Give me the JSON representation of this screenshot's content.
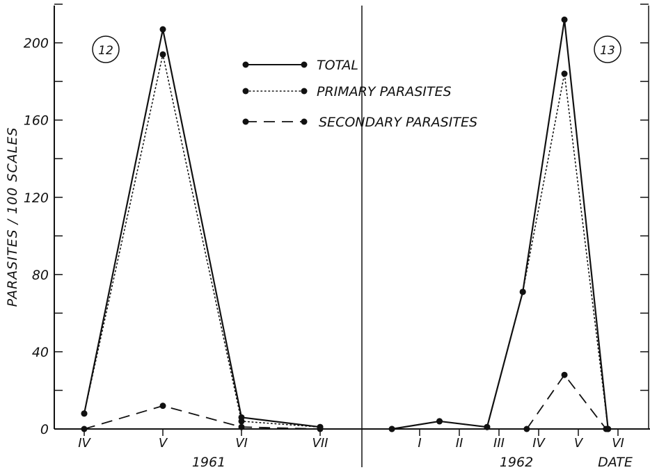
{
  "chart_data": [
    {
      "type": "line",
      "panel_label": "12",
      "year_label": "1961",
      "ylabel": "PARASITES / 100 SCALES",
      "ylim": [
        0,
        220
      ],
      "y_ticks": [
        "0",
        "40",
        "80",
        "120",
        "160",
        "200"
      ],
      "x_ticks": [
        {
          "label": "IV",
          "x": 1
        },
        {
          "label": "V",
          "x": 2
        },
        {
          "label": "VI",
          "x": 3
        },
        {
          "label": "VII",
          "x": 4
        }
      ],
      "legend": [
        {
          "name": "TOTAL",
          "style": "solid"
        },
        {
          "name": "PRIMARY PARASITES",
          "style": "dotted"
        },
        {
          "name": "SECONDARY PARASITES",
          "style": "dashed"
        }
      ],
      "series": [
        {
          "name": "TOTAL",
          "style": "solid",
          "x": [
            1,
            2,
            3,
            4
          ],
          "values": [
            8,
            207,
            6,
            1
          ]
        },
        {
          "name": "PRIMARY PARASITES",
          "style": "dotted",
          "x": [
            1,
            2,
            3,
            4
          ],
          "values": [
            8,
            194,
            4,
            1
          ]
        },
        {
          "name": "SECONDARY PARASITES",
          "style": "dashed",
          "x": [
            1,
            2,
            3,
            4
          ],
          "values": [
            0,
            12,
            1,
            0
          ]
        }
      ]
    },
    {
      "type": "line",
      "panel_label": "13",
      "year_label": "1962",
      "xlabel": "DATE",
      "ylim": [
        0,
        220
      ],
      "x_ticks": [
        {
          "label": "I",
          "x": 1
        },
        {
          "label": "II",
          "x": 2
        },
        {
          "label": "III",
          "x": 3
        },
        {
          "label": "IV",
          "x": 4
        },
        {
          "label": "V",
          "x": 5
        },
        {
          "label": "VI",
          "x": 6
        }
      ],
      "series": [
        {
          "name": "TOTAL",
          "style": "solid",
          "x": [
            0.3,
            1.5,
            2.7,
            3.6,
            4.65,
            5.75
          ],
          "values": [
            0,
            4,
            1,
            71,
            212,
            0
          ]
        },
        {
          "name": "PRIMARY PARASITES",
          "style": "dotted",
          "x": [
            0.3,
            1.5,
            2.7,
            3.6,
            4.65,
            5.75
          ],
          "values": [
            0,
            4,
            1,
            71,
            184,
            0
          ]
        },
        {
          "name": "SECONDARY PARASITES",
          "style": "dashed",
          "x": [
            3.7,
            4.65,
            5.7
          ],
          "values": [
            0,
            28,
            0
          ]
        }
      ]
    }
  ]
}
